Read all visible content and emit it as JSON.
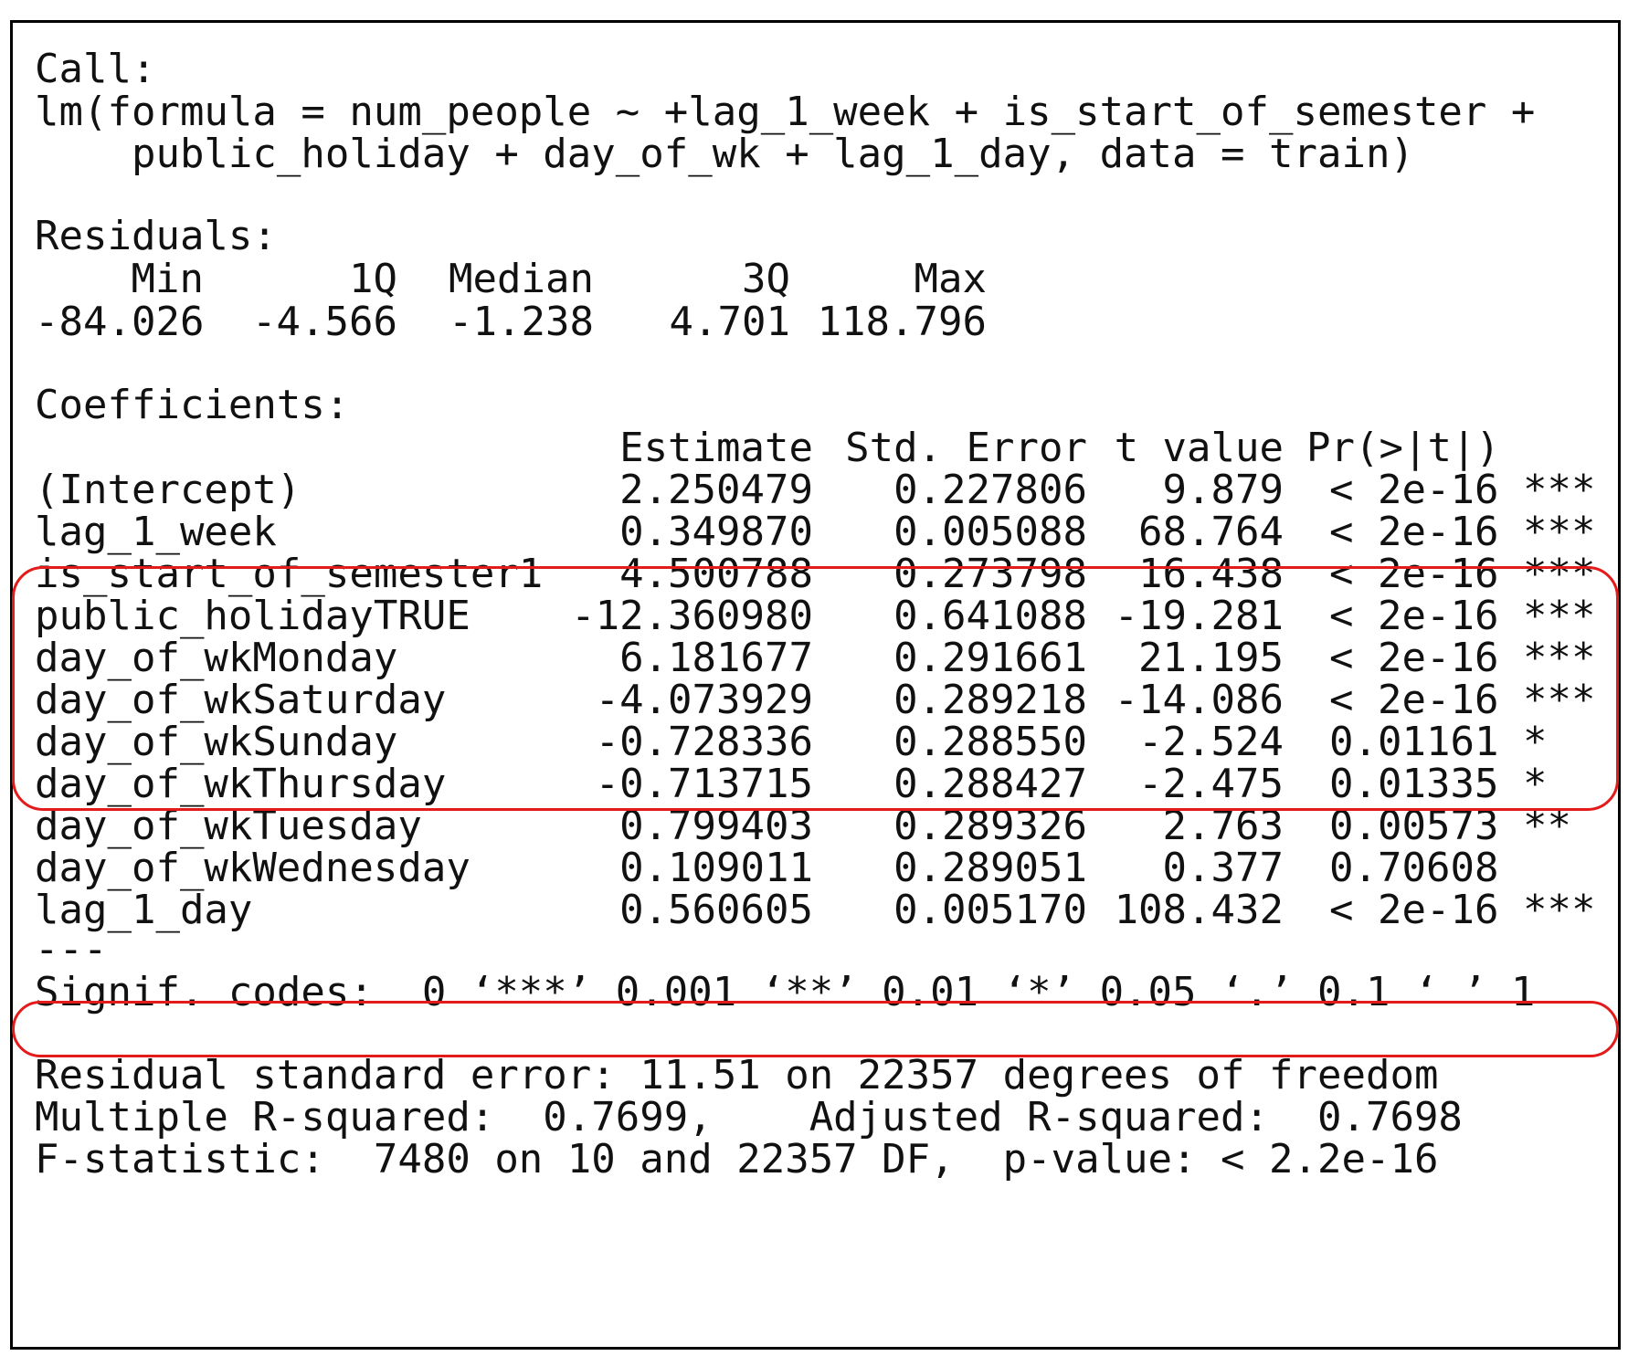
{
  "call": {
    "label": "Call:",
    "line1": "lm(formula = num_people ~ +lag_1_week + is_start_of_semester +",
    "line2": "    public_holiday + day_of_wk + lag_1_day, data = train)"
  },
  "residuals": {
    "label": "Residuals:",
    "headers": [
      "Min",
      "1Q",
      "Median",
      "3Q",
      "Max"
    ],
    "values": [
      "-84.026",
      "-4.566",
      "-1.238",
      "4.701",
      "118.796"
    ]
  },
  "coefficients": {
    "label": "Coefficients:",
    "headers": [
      "Estimate",
      "Std. Error",
      "t value",
      "Pr(>|t|)"
    ],
    "rows": [
      {
        "term": "(Intercept)",
        "estimate": "2.250479",
        "std_error": "0.227806",
        "t_value": "9.879",
        "p_value": "< 2e-16",
        "signif": "***"
      },
      {
        "term": "lag_1_week",
        "estimate": "0.349870",
        "std_error": "0.005088",
        "t_value": "68.764",
        "p_value": "< 2e-16",
        "signif": "***"
      },
      {
        "term": "is_start_of_semester1",
        "estimate": "4.500788",
        "std_error": "0.273798",
        "t_value": "16.438",
        "p_value": "< 2e-16",
        "signif": "***"
      },
      {
        "term": "public_holidayTRUE",
        "estimate": "-12.360980",
        "std_error": "0.641088",
        "t_value": "-19.281",
        "p_value": "< 2e-16",
        "signif": "***"
      },
      {
        "term": "day_of_wkMonday",
        "estimate": "6.181677",
        "std_error": "0.291661",
        "t_value": "21.195",
        "p_value": "< 2e-16",
        "signif": "***"
      },
      {
        "term": "day_of_wkSaturday",
        "estimate": "-4.073929",
        "std_error": "0.289218",
        "t_value": "-14.086",
        "p_value": "< 2e-16",
        "signif": "***"
      },
      {
        "term": "day_of_wkSunday",
        "estimate": "-0.728336",
        "std_error": "0.288550",
        "t_value": "-2.524",
        "p_value": "0.01161",
        "signif": "*"
      },
      {
        "term": "day_of_wkThursday",
        "estimate": "-0.713715",
        "std_error": "0.288427",
        "t_value": "-2.475",
        "p_value": "0.01335",
        "signif": "*"
      },
      {
        "term": "day_of_wkTuesday",
        "estimate": "0.799403",
        "std_error": "0.289326",
        "t_value": "2.763",
        "p_value": "0.00573",
        "signif": "**"
      },
      {
        "term": "day_of_wkWednesday",
        "estimate": "0.109011",
        "std_error": "0.289051",
        "t_value": "0.377",
        "p_value": "0.70608",
        "signif": ""
      },
      {
        "term": "lag_1_day",
        "estimate": "0.560605",
        "std_error": "0.005170",
        "t_value": "108.432",
        "p_value": "< 2e-16",
        "signif": "***"
      }
    ],
    "separator": "---",
    "signif_codes": "Signif. codes:  0 ‘***’ 0.001 ‘**’ 0.01 ‘*’ 0.05 ‘.’ 0.1 ‘ ’ 1"
  },
  "summary": {
    "residual_se": "Residual standard error: 11.51 on 22357 degrees of freedom",
    "r_squared": "Multiple R-squared:  0.7699,    Adjusted R-squared:  0.7698",
    "f_statistic": "F-statistic:  7480 on 10 and 22357 DF,  p-value: < 2.2e-16"
  },
  "colors": {
    "highlight": "#e31b1b",
    "text": "#111111",
    "border": "#000000"
  }
}
